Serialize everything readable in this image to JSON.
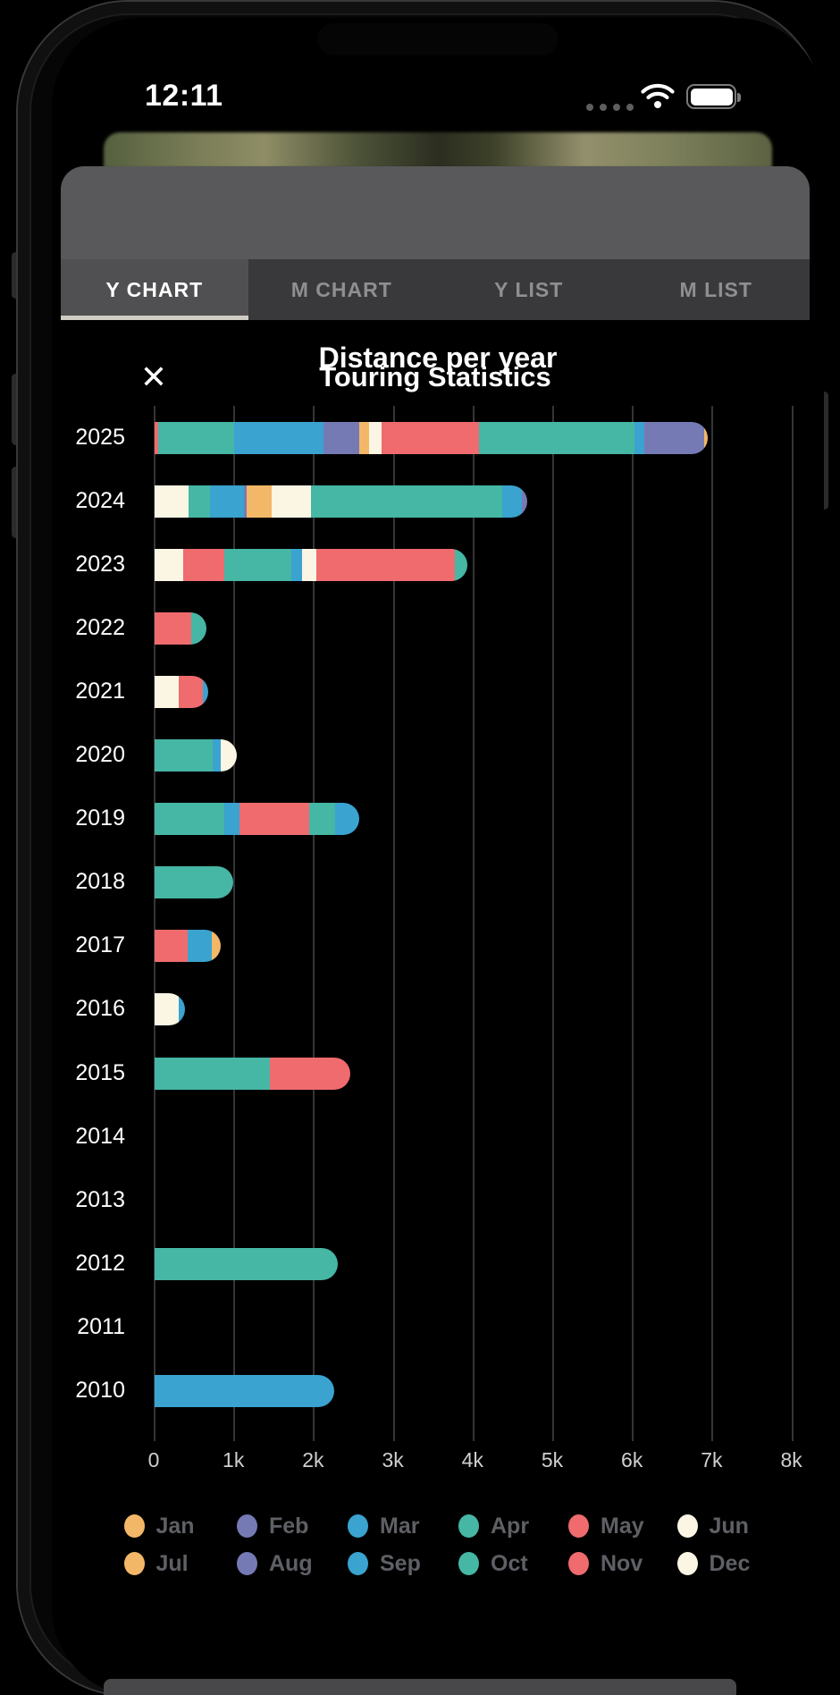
{
  "status_bar": {
    "time": "12:11"
  },
  "modal": {
    "title": "Touring Statistics",
    "close_label": "✕"
  },
  "tabs": [
    {
      "label": "Y CHART",
      "active": true
    },
    {
      "label": "M CHART",
      "active": false
    },
    {
      "label": "Y LIST",
      "active": false
    },
    {
      "label": "M LIST",
      "active": false
    }
  ],
  "chart_data": {
    "type": "bar",
    "orientation": "horizontal",
    "stacked": true,
    "title": "Distance per year",
    "unit": "km",
    "xlim": [
      0,
      8000
    ],
    "x_tick_values": [
      0,
      1000,
      2000,
      3000,
      4000,
      5000,
      6000,
      7000,
      8000
    ],
    "x_tick_labels": [
      "0",
      "1k",
      "2k",
      "3k",
      "4k",
      "5k",
      "6k",
      "7k",
      "8k"
    ],
    "grid": true,
    "legend_position": "bottom",
    "categories": [
      "2025",
      "2024",
      "2023",
      "2022",
      "2021",
      "2020",
      "2019",
      "2018",
      "2017",
      "2016",
      "2015",
      "2014",
      "2013",
      "2012",
      "2011",
      "2010"
    ],
    "month_colors": {
      "Jan": "#F3B768",
      "Feb": "#757AB4",
      "Mar": "#3AA3CF",
      "Apr": "#46B6A5",
      "May": "#EF6B6E",
      "Jun": "#FBF5E4",
      "Jul": "#F3B768",
      "Aug": "#757AB4",
      "Sep": "#3AA3CF",
      "Oct": "#46B6A5",
      "Nov": "#EF6B6E",
      "Dec": "#FBF5E4"
    },
    "bars": [
      {
        "year": "2025",
        "total_km": 6940,
        "segments": [
          [
            "Nov",
            50
          ],
          [
            "Oct",
            950
          ],
          [
            "Sep",
            1120
          ],
          [
            "Aug",
            450
          ],
          [
            "Jul",
            120
          ],
          [
            "Jun",
            160
          ],
          [
            "May",
            1220
          ],
          [
            "Apr",
            1950
          ],
          [
            "Mar",
            120
          ],
          [
            "Feb",
            760
          ],
          [
            "Jan",
            40
          ]
        ]
      },
      {
        "year": "2024",
        "total_km": 4670,
        "segments": [
          [
            "Dec",
            430
          ],
          [
            "Oct",
            260
          ],
          [
            "Sep",
            430
          ],
          [
            "Aug",
            40
          ],
          [
            "Jul",
            310
          ],
          [
            "Jun",
            490
          ],
          [
            "Apr",
            2400
          ],
          [
            "Mar",
            250
          ],
          [
            "Feb",
            60
          ]
        ]
      },
      {
        "year": "2023",
        "total_km": 3920,
        "segments": [
          [
            "Dec",
            360
          ],
          [
            "Nov",
            520
          ],
          [
            "Oct",
            840
          ],
          [
            "Sep",
            130
          ],
          [
            "Jun",
            180
          ],
          [
            "May",
            1740
          ],
          [
            "Apr",
            150
          ]
        ]
      },
      {
        "year": "2022",
        "total_km": 650,
        "segments": [
          [
            "Nov",
            460
          ],
          [
            "Oct",
            190
          ]
        ]
      },
      {
        "year": "2021",
        "total_km": 670,
        "segments": [
          [
            "Dec",
            300
          ],
          [
            "Nov",
            310
          ],
          [
            "Sep",
            60
          ]
        ]
      },
      {
        "year": "2020",
        "total_km": 1030,
        "segments": [
          [
            "Oct",
            730
          ],
          [
            "Sep",
            100
          ],
          [
            "Jun",
            200
          ]
        ]
      },
      {
        "year": "2019",
        "total_km": 2570,
        "segments": [
          [
            "Oct",
            870
          ],
          [
            "Sep",
            190
          ],
          [
            "May",
            880
          ],
          [
            "Apr",
            330
          ],
          [
            "Mar",
            300
          ]
        ]
      },
      {
        "year": "2018",
        "total_km": 990,
        "segments": [
          [
            "Oct",
            990
          ]
        ]
      },
      {
        "year": "2017",
        "total_km": 830,
        "segments": [
          [
            "Nov",
            410
          ],
          [
            "Sep",
            310
          ],
          [
            "Jul",
            110
          ]
        ]
      },
      {
        "year": "2016",
        "total_km": 380,
        "segments": [
          [
            "Dec",
            300
          ],
          [
            "Sep",
            80
          ]
        ]
      },
      {
        "year": "2015",
        "total_km": 2450,
        "segments": [
          [
            "Oct",
            1450
          ],
          [
            "May",
            1000
          ]
        ]
      },
      {
        "year": "2014",
        "total_km": 0,
        "segments": []
      },
      {
        "year": "2013",
        "total_km": 0,
        "segments": []
      },
      {
        "year": "2012",
        "total_km": 2300,
        "segments": [
          [
            "Oct",
            2300
          ]
        ]
      },
      {
        "year": "2011",
        "total_km": 0,
        "segments": []
      },
      {
        "year": "2010",
        "total_km": 2250,
        "segments": [
          [
            "Sep",
            2250
          ]
        ]
      }
    ],
    "legend_rows": [
      [
        "Jan",
        "Feb",
        "Mar",
        "Apr",
        "May",
        "Jun"
      ],
      [
        "Jul",
        "Aug",
        "Sep",
        "Oct",
        "Nov",
        "Dec"
      ]
    ]
  }
}
